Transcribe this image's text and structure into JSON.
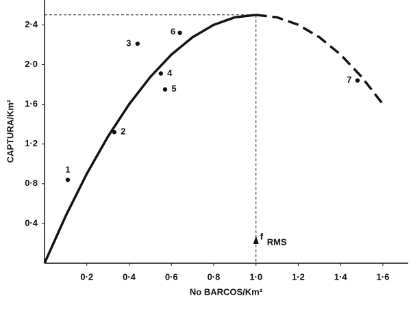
{
  "chart_data": {
    "type": "scatter",
    "x_label": "No BARCOS/Km²",
    "y_label": "CAPTURA/Km²",
    "x": [
      0.11,
      0.33,
      0.44,
      0.55,
      0.57,
      0.64,
      1.48
    ],
    "values": [
      0.84,
      1.32,
      2.21,
      1.91,
      1.75,
      2.32,
      1.84
    ],
    "point_labels": [
      "1",
      "2",
      "3",
      "4",
      "5",
      "6",
      "7"
    ],
    "color": "#111111",
    "curves": [
      {
        "style": "solid",
        "x": [
          0,
          0.1,
          0.2,
          0.3,
          0.4,
          0.5,
          0.6,
          0.7,
          0.8,
          0.9,
          1.0
        ],
        "y": [
          0,
          0.475,
          0.9,
          1.275,
          1.6,
          1.875,
          2.1,
          2.275,
          2.4,
          2.475,
          2.5
        ]
      },
      {
        "style": "dashed",
        "x": [
          1.0,
          1.1,
          1.2,
          1.3,
          1.4,
          1.5,
          1.6
        ],
        "y": [
          2.5,
          2.475,
          2.4,
          2.275,
          2.1,
          1.875,
          1.6
        ]
      }
    ],
    "reference": {
      "x": 1.0,
      "y": 2.5,
      "label": "f",
      "label_sub": "RMS"
    },
    "xlim": [
      0,
      1.72
    ],
    "ylim": [
      0,
      2.65
    ],
    "xticks": [
      {
        "value": 0.2,
        "label": "0·2"
      },
      {
        "value": 0.4,
        "label": "0·4"
      },
      {
        "value": 0.6,
        "label": "0·6"
      },
      {
        "value": 0.8,
        "label": "0·8"
      },
      {
        "value": 1.0,
        "label": "1·0"
      },
      {
        "value": 1.2,
        "label": "1·2"
      },
      {
        "value": 1.4,
        "label": "1·4"
      },
      {
        "value": 1.6,
        "label": "1·6"
      }
    ],
    "yticks": [
      {
        "value": 0.4,
        "label": "0·4"
      },
      {
        "value": 0.8,
        "label": "0·8"
      },
      {
        "value": 1.2,
        "label": "1·2"
      },
      {
        "value": 1.6,
        "label": "1·6"
      },
      {
        "value": 2.0,
        "label": "2·0"
      },
      {
        "value": 2.4,
        "label": "2·4"
      }
    ],
    "grid": false
  }
}
